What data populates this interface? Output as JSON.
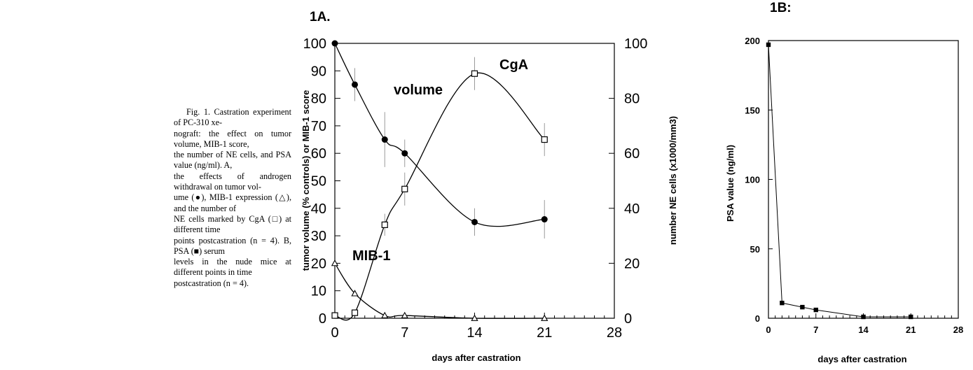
{
  "caption": {
    "lines": [
      "Fig. 1. Castration experiment of PC-310 xe-",
      "nograft: the effect on tumor volume, MIB-1 score,",
      "the number of NE cells, and PSA value (ng/ml). A,",
      "the effects of androgen withdrawal on tumor vol-",
      "ume (●), MIB-1 expression (△), and the number of",
      "NE cells marked by CgA (□) at different time",
      "points postcastration (n = 4). B, PSA (■) serum",
      "levels in the nude mice at different points in time",
      "postcastration (n = 4)."
    ]
  },
  "chart_data": [
    {
      "panel": "1A.",
      "type": "line",
      "xlabel": "days after castration",
      "ylabel": "tumor volume (% controls) or MIB-1 score",
      "y2label": "number NE cells (x1000/mm3)",
      "xlim": [
        0,
        28
      ],
      "ylim": [
        0,
        100
      ],
      "y2lim": [
        0,
        100
      ],
      "xticks": [
        0,
        7,
        14,
        21,
        28
      ],
      "yticks": [
        0,
        10,
        20,
        30,
        40,
        50,
        60,
        70,
        80,
        90,
        100
      ],
      "y2ticks": [
        0,
        20,
        40,
        60,
        80,
        100
      ],
      "series": [
        {
          "name": "volume",
          "marker": "filled-circle",
          "axis": "left",
          "x": [
            0,
            2,
            5,
            7,
            14,
            21
          ],
          "y": [
            100,
            85,
            65,
            60,
            35,
            36
          ],
          "err": [
            0,
            6,
            10,
            5,
            5,
            7
          ]
        },
        {
          "name": "CgA",
          "marker": "open-square",
          "axis": "right",
          "x": [
            0,
            2,
            5,
            7,
            14,
            21
          ],
          "y": [
            1,
            2,
            34,
            47,
            89,
            65
          ],
          "err": [
            0,
            1,
            4,
            6,
            6,
            6
          ]
        },
        {
          "name": "MIB-1",
          "marker": "open-triangle",
          "axis": "left",
          "x": [
            0,
            2,
            5,
            7,
            14,
            21
          ],
          "y": [
            20,
            9,
            1,
            1,
            0,
            0
          ],
          "err": [
            0,
            0,
            0,
            0,
            0,
            0
          ]
        }
      ]
    },
    {
      "panel": "1B:",
      "type": "line",
      "xlabel": "days after castration",
      "ylabel": "PSA value (ng/ml)",
      "xlim": [
        0,
        28
      ],
      "ylim": [
        0,
        200
      ],
      "xticks": [
        0,
        7,
        14,
        21,
        28
      ],
      "yticks": [
        0,
        50,
        100,
        150,
        200
      ],
      "series": [
        {
          "name": "PSA",
          "marker": "filled-square",
          "axis": "left",
          "x": [
            0,
            2,
            5,
            7,
            14,
            21
          ],
          "y": [
            197,
            11,
            8,
            6,
            1,
            1
          ]
        }
      ]
    }
  ]
}
